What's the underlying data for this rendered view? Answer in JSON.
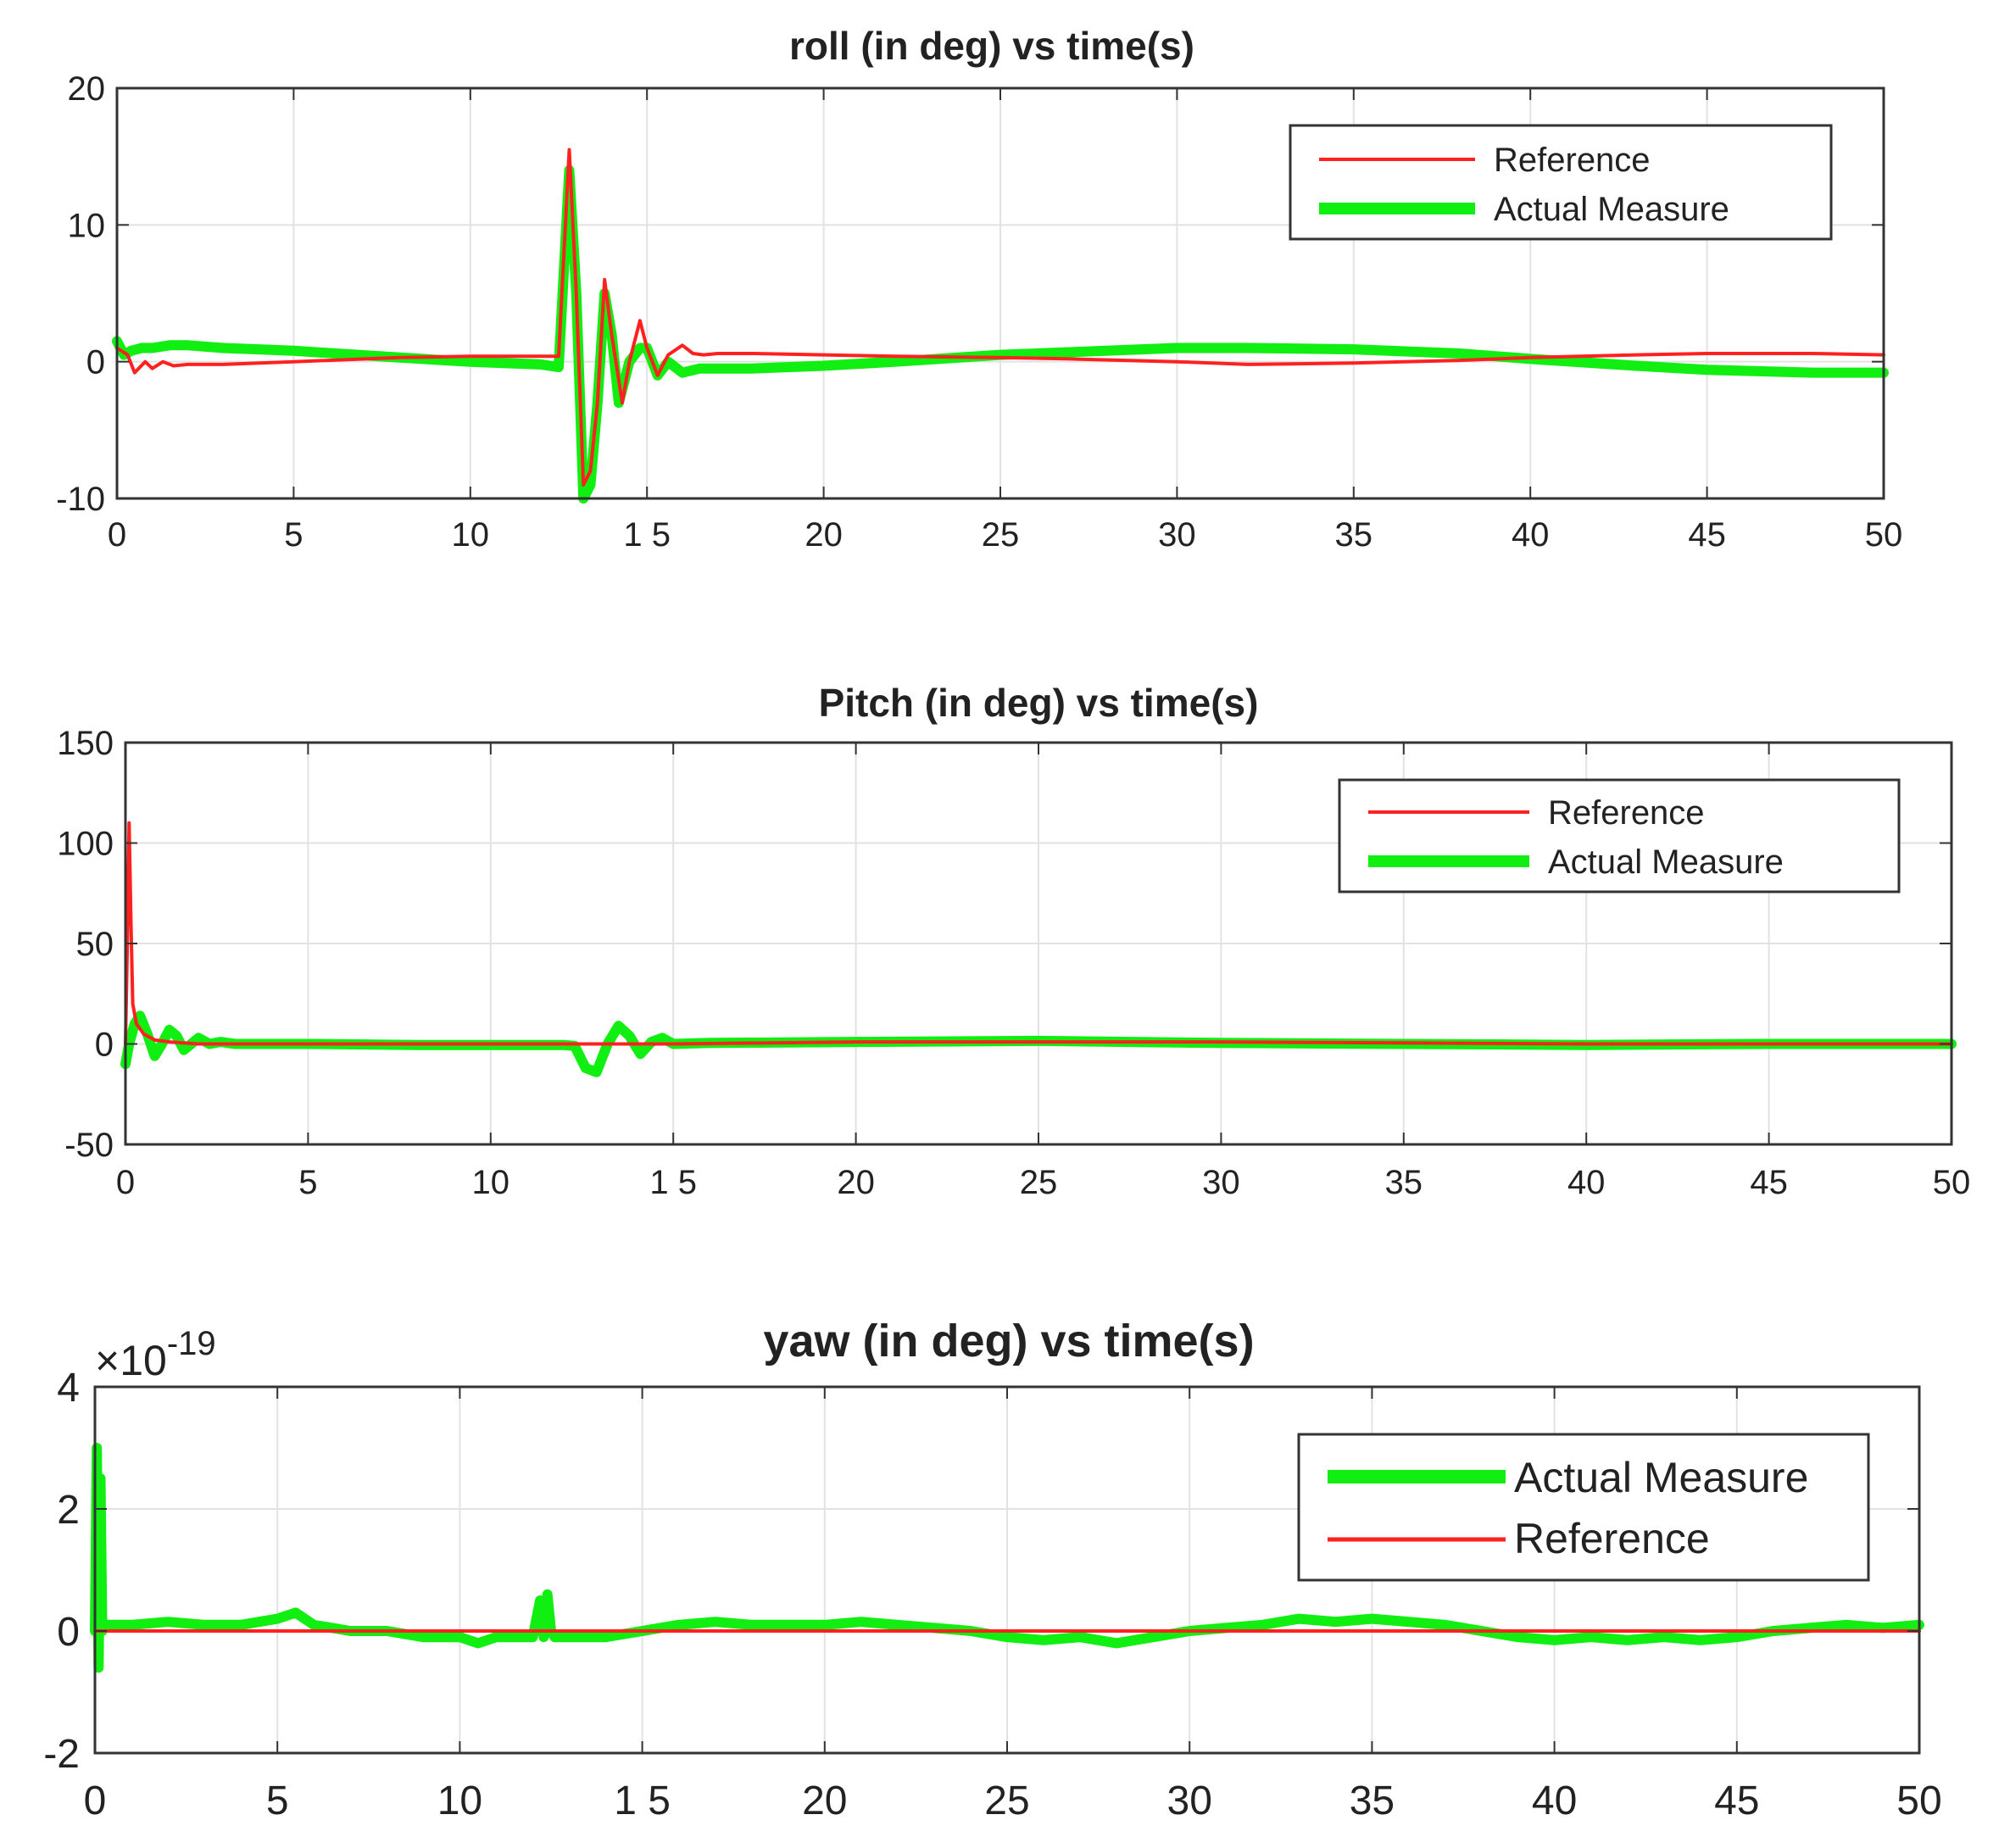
{
  "chart_data": [
    {
      "type": "line",
      "title": "roll (in deg) vs time(s)",
      "xlabel": "",
      "ylabel": "",
      "xlim": [
        0,
        50
      ],
      "ylim": [
        -10,
        20
      ],
      "xticks": [
        0,
        5,
        10,
        15,
        20,
        25,
        30,
        35,
        40,
        45,
        50
      ],
      "xtick_labels": [
        "0",
        "5",
        "10",
        "1 5",
        "20",
        "25",
        "30",
        "35",
        "40",
        "45",
        "50"
      ],
      "yticks": [
        -10,
        0,
        10,
        20
      ],
      "ytick_labels": [
        "-10",
        "0",
        "10",
        "20"
      ],
      "exponent_label": "",
      "grid": true,
      "legend_position": "top-right",
      "legend": [
        "Reference",
        "Actual Measure"
      ],
      "series": [
        {
          "name": "Reference",
          "color": "#ff2020",
          "width": "thin",
          "x": [
            0,
            0.3,
            0.5,
            0.8,
            1.0,
            1.3,
            1.6,
            2.0,
            3,
            5,
            8,
            10,
            12,
            12.5,
            12.8,
            13.0,
            13.2,
            13.4,
            13.6,
            13.8,
            14.0,
            14.3,
            14.5,
            14.8,
            15.0,
            15.3,
            15.6,
            16.0,
            16.3,
            16.6,
            17,
            18,
            20,
            22,
            25,
            27,
            30,
            32,
            35,
            38,
            40,
            43,
            45,
            48,
            50
          ],
          "y": [
            1,
            0.5,
            -0.8,
            0,
            -0.5,
            0,
            -0.3,
            -0.2,
            -0.2,
            0,
            0.3,
            0.4,
            0.4,
            0.4,
            15.5,
            5,
            -9,
            -8,
            -3,
            6,
            2,
            -3,
            0,
            3,
            1,
            -1,
            0.5,
            1.2,
            0.6,
            0.5,
            0.6,
            0.6,
            0.5,
            0.4,
            0.3,
            0.2,
            0,
            -0.2,
            -0.1,
            0.1,
            0.3,
            0.5,
            0.6,
            0.6,
            0.5
          ]
        },
        {
          "name": "Actual Measure",
          "color": "#11ee11",
          "width": "thick",
          "x": [
            0,
            0.2,
            0.4,
            0.7,
            1.0,
            1.5,
            2,
            3,
            5,
            8,
            10,
            12,
            12.5,
            12.8,
            13.0,
            13.2,
            13.4,
            13.6,
            13.8,
            14.0,
            14.2,
            14.5,
            14.8,
            15.0,
            15.3,
            15.6,
            16,
            16.5,
            17,
            18,
            20,
            22,
            25,
            28,
            30,
            32,
            35,
            38,
            40,
            43,
            45,
            48,
            50
          ],
          "y": [
            1.5,
            0.5,
            0.8,
            1.0,
            1.0,
            1.2,
            1.2,
            1.0,
            0.8,
            0.3,
            0,
            -0.2,
            -0.4,
            14,
            5,
            -10,
            -9,
            -3,
            5,
            2,
            -3,
            0,
            1,
            1,
            -1,
            0,
            -0.8,
            -0.5,
            -0.5,
            -0.5,
            -0.3,
            0,
            0.5,
            0.8,
            1.0,
            1.0,
            0.9,
            0.6,
            0.2,
            -0.3,
            -0.6,
            -0.8,
            -0.8
          ]
        }
      ]
    },
    {
      "type": "line",
      "title": "Pitch (in deg) vs time(s)",
      "xlabel": "",
      "ylabel": "",
      "xlim": [
        0,
        50
      ],
      "ylim": [
        -50,
        150
      ],
      "xticks": [
        0,
        5,
        10,
        15,
        20,
        25,
        30,
        35,
        40,
        45,
        50
      ],
      "xtick_labels": [
        "0",
        "5",
        "10",
        "1 5",
        "20",
        "25",
        "30",
        "35",
        "40",
        "45",
        "50"
      ],
      "yticks": [
        -50,
        0,
        50,
        100,
        150
      ],
      "ytick_labels": [
        "-50",
        "0",
        "50",
        "100",
        "150"
      ],
      "exponent_label": "",
      "grid": true,
      "legend_position": "top-right",
      "legend": [
        "Reference",
        "Actual Measure"
      ],
      "series": [
        {
          "name": "Reference",
          "color": "#ff2020",
          "width": "thin",
          "x": [
            0,
            0.05,
            0.1,
            0.15,
            0.2,
            0.3,
            0.5,
            0.8,
            1.2,
            2,
            5,
            10,
            12,
            13,
            14,
            15,
            20,
            30,
            40,
            50
          ],
          "y": [
            0,
            50,
            110,
            60,
            20,
            10,
            5,
            2,
            1,
            0,
            0,
            0,
            0,
            0,
            0,
            0,
            1,
            1,
            0,
            0
          ]
        },
        {
          "name": "Actual Measure",
          "color": "#11ee11",
          "width": "thick",
          "x": [
            0,
            0.1,
            0.25,
            0.4,
            0.6,
            0.8,
            1.0,
            1.2,
            1.4,
            1.6,
            1.8,
            2.0,
            2.3,
            2.6,
            3,
            5,
            8,
            10,
            12,
            12.3,
            12.6,
            12.9,
            13.2,
            13.5,
            13.8,
            14.1,
            14.4,
            14.7,
            15,
            16,
            20,
            25,
            30,
            35,
            40,
            45,
            50
          ],
          "y": [
            -10,
            0,
            10,
            14,
            5,
            -6,
            0,
            7,
            4,
            -3,
            0,
            3,
            0,
            1,
            0,
            0,
            -0.5,
            -0.5,
            -0.5,
            -1,
            -12,
            -14,
            0,
            9,
            4,
            -5,
            1,
            3,
            0,
            0.5,
            1,
            1.5,
            0.5,
            0,
            -0.5,
            0,
            0
          ]
        }
      ]
    },
    {
      "type": "line",
      "title": "yaw (in deg) vs time(s)",
      "xlabel": "",
      "ylabel": "",
      "xlim": [
        0,
        50
      ],
      "ylim": [
        -2,
        4
      ],
      "xticks": [
        0,
        5,
        10,
        15,
        20,
        25,
        30,
        35,
        40,
        45,
        50
      ],
      "xtick_labels": [
        "0",
        "5",
        "10",
        "1 5",
        "20",
        "25",
        "30",
        "35",
        "40",
        "45",
        "50"
      ],
      "yticks": [
        -2,
        0,
        2,
        4
      ],
      "ytick_labels": [
        "-2",
        "0",
        "2",
        "4"
      ],
      "exponent_label": "×10",
      "exponent_power": "-19",
      "grid": true,
      "legend_position": "middle-right",
      "legend": [
        "Actual Measure",
        "Reference"
      ],
      "series": [
        {
          "name": "Actual Measure",
          "color": "#11ee11",
          "width": "thick",
          "x": [
            0,
            0.05,
            0.1,
            0.15,
            0.2,
            0.3,
            1,
            2,
            3,
            4,
            5,
            5.5,
            6,
            7,
            8,
            9,
            10,
            10.5,
            11,
            12,
            12.2,
            12.3,
            12.4,
            12.5,
            12.6,
            13,
            14,
            15,
            16,
            17,
            18,
            20,
            21,
            22,
            24,
            25,
            26,
            27,
            28,
            29,
            30,
            31,
            32,
            33,
            34,
            35,
            36,
            37,
            38,
            39,
            40,
            41,
            42,
            43,
            44,
            45,
            46,
            47,
            48,
            49,
            50
          ],
          "y": [
            0,
            3,
            -0.6,
            2.5,
            0,
            0.1,
            0.1,
            0.15,
            0.1,
            0.1,
            0.2,
            0.3,
            0.1,
            0,
            0,
            -0.1,
            -0.1,
            -0.2,
            -0.1,
            -0.1,
            0.5,
            -0.1,
            0.6,
            0,
            -0.1,
            -0.1,
            -0.1,
            0,
            0.1,
            0.15,
            0.1,
            0.1,
            0.15,
            0.1,
            0,
            -0.1,
            -0.15,
            -0.1,
            -0.2,
            -0.1,
            0,
            0.05,
            0.1,
            0.2,
            0.15,
            0.2,
            0.15,
            0.1,
            0,
            -0.1,
            -0.15,
            -0.1,
            -0.15,
            -0.1,
            -0.15,
            -0.1,
            0,
            0.05,
            0.1,
            0.05,
            0.1
          ]
        },
        {
          "name": "Reference",
          "color": "#ff2020",
          "width": "thin",
          "x": [
            0,
            50
          ],
          "y": [
            0,
            0
          ]
        }
      ]
    }
  ]
}
